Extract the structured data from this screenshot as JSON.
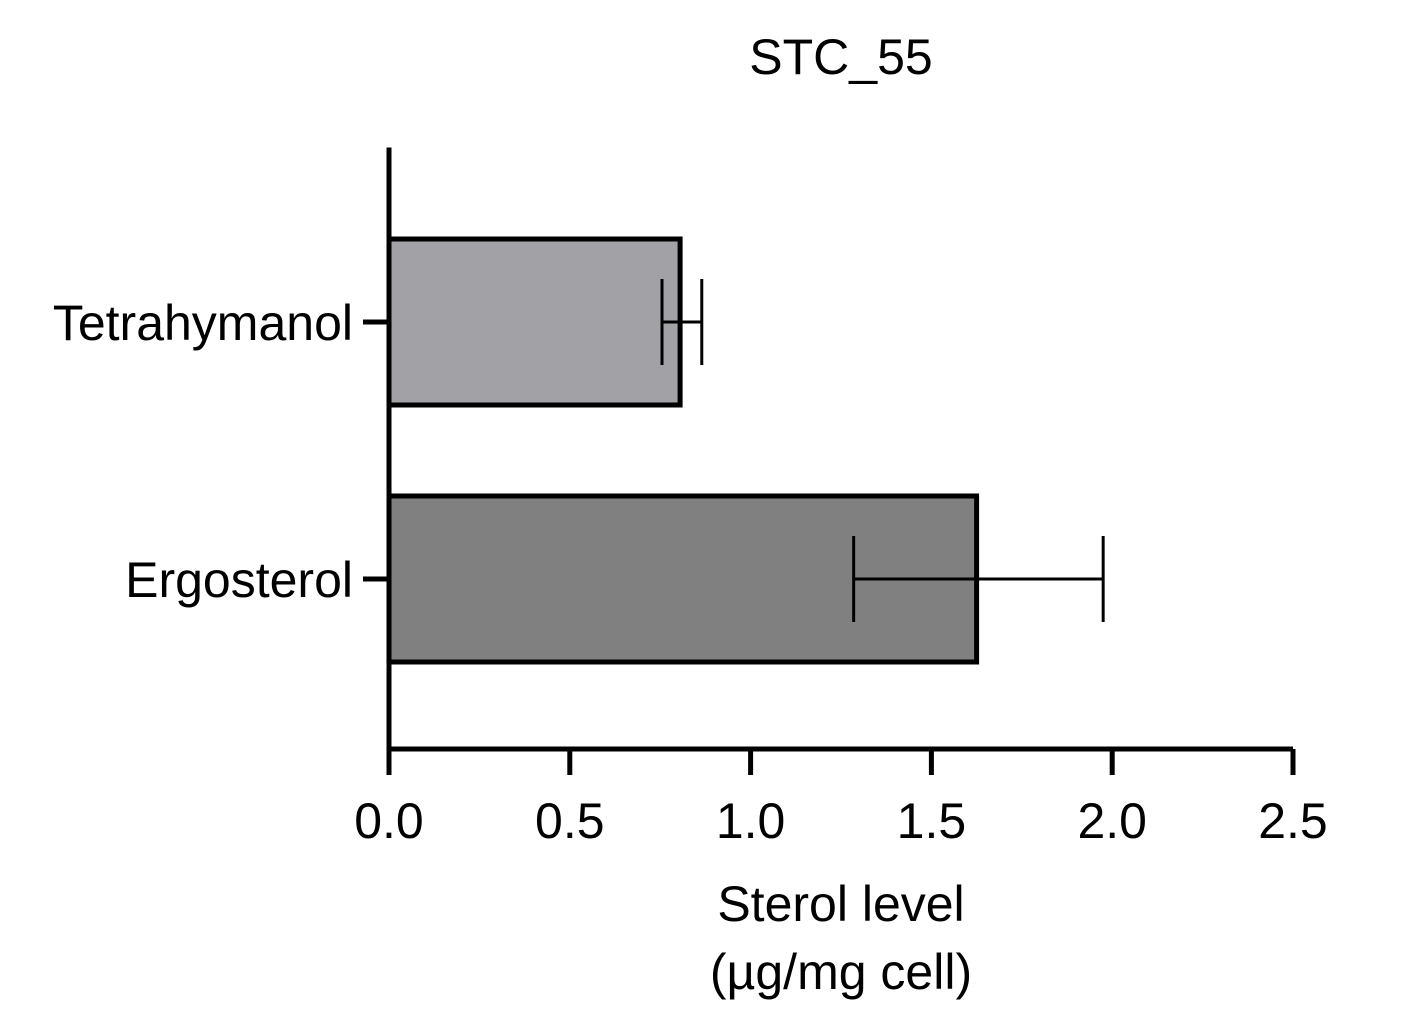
{
  "chart_data": {
    "type": "bar",
    "orientation": "horizontal",
    "title": "STC_55",
    "xlabel": [
      "Sterol level",
      "(µg/mg cell)"
    ],
    "ylabel": "",
    "xlim": [
      0,
      2.5
    ],
    "xticks": [
      0.0,
      0.5,
      1.0,
      1.5,
      2.0,
      2.5
    ],
    "xtick_labels": [
      "0.0",
      "0.5",
      "1.0",
      "1.5",
      "2.0",
      "2.5"
    ],
    "categories": [
      "Tetrahymanol",
      "Ergosterol"
    ],
    "values": [
      0.805,
      1.625
    ],
    "error_low": [
      0.755,
      1.285
    ],
    "error_high": [
      0.865,
      1.975
    ],
    "bar_colors": [
      "#a2a1a6",
      "#808080"
    ],
    "edge_color": "#000000",
    "grid": false,
    "legend": "none"
  }
}
